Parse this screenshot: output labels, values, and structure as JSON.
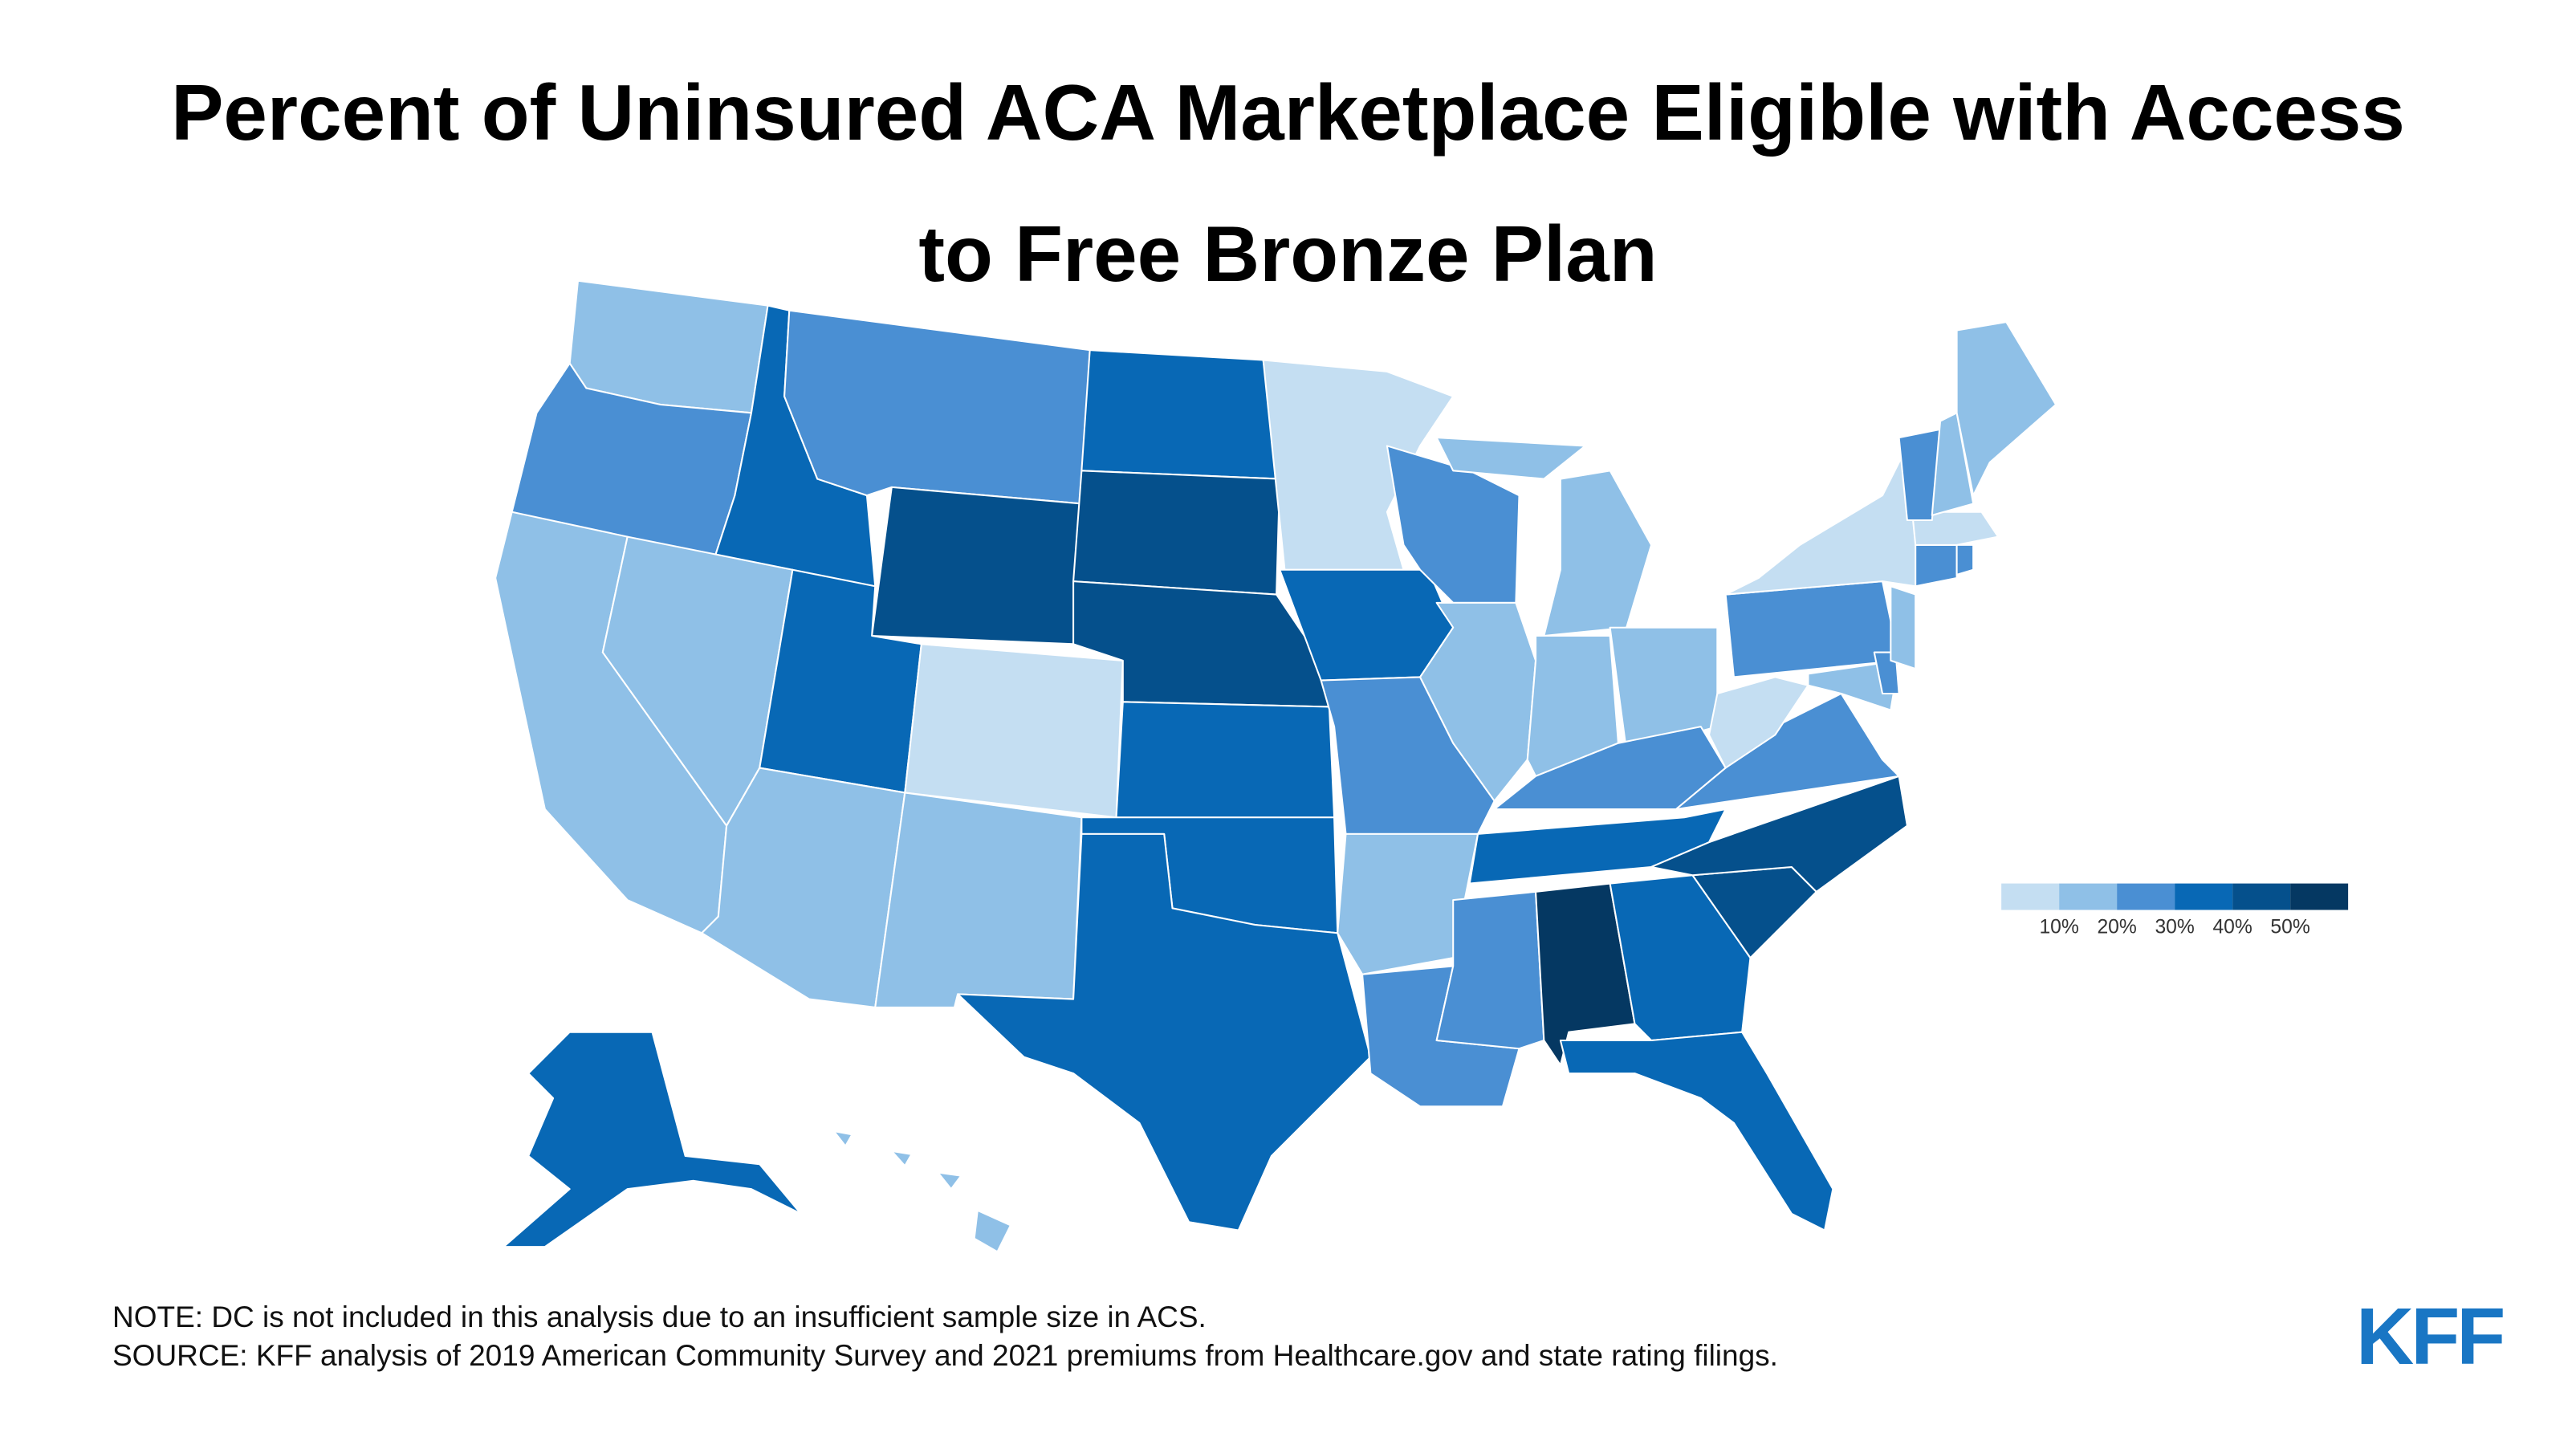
{
  "chart_data": {
    "type": "choropleth",
    "title": "Percent of Uninsured ACA Marketplace Eligible with Access to Free Bronze Plan",
    "values": [
      15,
      25,
      15,
      35,
      15,
      25,
      45,
      35,
      15,
      5,
      15,
      35,
      45,
      45,
      35,
      35,
      35,
      5,
      35,
      25,
      15,
      25,
      25,
      15,
      15,
      15,
      15,
      25,
      35,
      25,
      55,
      35,
      35,
      45,
      45,
      25,
      5,
      25,
      5,
      15,
      25,
      15,
      25,
      25,
      5,
      25,
      15,
      15,
      35,
      15
    ],
    "legend": {
      "colors": [
        "#c4def2",
        "#8fc0e7",
        "#4a8fd3",
        "#0868b5",
        "#05508c",
        "#053862"
      ],
      "ticks": [
        {
          "value": 10,
          "label": "10%"
        },
        {
          "value": 20,
          "label": "20%"
        },
        {
          "value": 30,
          "label": "30%"
        },
        {
          "value": 40,
          "label": "40%"
        },
        {
          "value": 50,
          "label": "50%"
        }
      ]
    }
  },
  "notes": [
    "NOTE: DC is not included in this analysis due to an insufficient sample size in ACS.",
    "SOURCE: KFF analysis of 2019 American Community Survey and 2021 premiums from Healthcare.gov and state rating filings."
  ],
  "logo": "KFF"
}
